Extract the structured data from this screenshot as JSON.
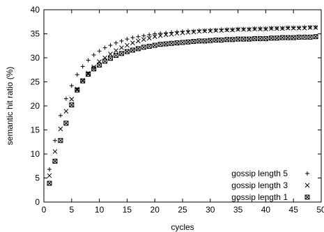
{
  "chart_data": {
    "type": "scatter",
    "xlabel": "cycles",
    "ylabel": "semantic hit ratio (%)",
    "xlim": [
      0,
      50
    ],
    "ylim": [
      0,
      40
    ],
    "xticks": [
      "0",
      "5",
      "10",
      "15",
      "20",
      "25",
      "30",
      "35",
      "40",
      "45",
      "50"
    ],
    "yticks": [
      "0",
      "5",
      "10",
      "15",
      "20",
      "25",
      "30",
      "35",
      "40"
    ],
    "grid": false,
    "legend_position": "bottom-right",
    "series": [
      {
        "name": "gossip length 5",
        "marker": "plus",
        "x": [
          1,
          2,
          3,
          4,
          5,
          6,
          7,
          8,
          9,
          10,
          11,
          12,
          13,
          14,
          15,
          16,
          17,
          18,
          19,
          20,
          21,
          22,
          23,
          24,
          25,
          26,
          27,
          28,
          29,
          30,
          31,
          32,
          33,
          34,
          35,
          36,
          37,
          38,
          39,
          40,
          41,
          42,
          43,
          44,
          45,
          46,
          47,
          48,
          49
        ],
        "y": [
          6.8,
          12.8,
          18.0,
          21.5,
          24.2,
          26.5,
          28.2,
          29.5,
          30.6,
          31.4,
          32.1,
          32.6,
          33.1,
          33.5,
          33.9,
          34.2,
          34.4,
          34.6,
          34.8,
          35.0,
          35.1,
          35.2,
          35.3,
          35.4,
          35.5,
          35.6,
          35.6,
          35.7,
          35.7,
          35.8,
          35.8,
          35.9,
          35.9,
          35.9,
          36.0,
          36.0,
          36.0,
          36.1,
          36.1,
          36.1,
          36.2,
          36.2,
          36.2,
          36.3,
          36.3,
          36.3,
          36.4,
          36.4,
          36.4
        ]
      },
      {
        "name": "gossip length 3",
        "marker": "cross",
        "x": [
          1,
          2,
          3,
          4,
          5,
          6,
          7,
          8,
          9,
          10,
          11,
          12,
          13,
          14,
          15,
          16,
          17,
          18,
          19,
          20,
          21,
          22,
          23,
          24,
          25,
          26,
          27,
          28,
          29,
          30,
          31,
          32,
          33,
          34,
          35,
          36,
          37,
          38,
          39,
          40,
          41,
          42,
          43,
          44,
          45,
          46,
          47,
          48,
          49
        ],
        "y": [
          5.5,
          10.5,
          15.2,
          18.9,
          21.4,
          23.5,
          25.3,
          26.8,
          28.1,
          29.2,
          30.0,
          30.8,
          31.5,
          32.1,
          32.6,
          33.1,
          33.5,
          33.8,
          34.1,
          34.4,
          34.6,
          34.8,
          34.9,
          35.1,
          35.2,
          35.3,
          35.4,
          35.5,
          35.6,
          35.6,
          35.7,
          35.7,
          35.8,
          35.8,
          35.9,
          35.9,
          35.9,
          36.0,
          36.0,
          36.0,
          36.1,
          36.1,
          36.1,
          36.2,
          36.2,
          36.2,
          36.2,
          36.3,
          36.3
        ]
      },
      {
        "name": "gossip length 1",
        "marker": "box-cross",
        "x": [
          1,
          2,
          3,
          4,
          5,
          6,
          7,
          8,
          9,
          10,
          11,
          12,
          13,
          14,
          15,
          16,
          17,
          18,
          19,
          20,
          21,
          22,
          23,
          24,
          25,
          26,
          27,
          28,
          29,
          30,
          31,
          32,
          33,
          34,
          35,
          36,
          37,
          38,
          39,
          40,
          41,
          42,
          43,
          44,
          45,
          46,
          47,
          48,
          49
        ],
        "y": [
          3.9,
          8.5,
          12.8,
          16.4,
          20.2,
          23.3,
          25.2,
          26.6,
          27.7,
          28.5,
          29.3,
          29.9,
          30.5,
          30.9,
          31.3,
          31.6,
          31.9,
          32.2,
          32.4,
          32.6,
          32.8,
          32.9,
          33.0,
          33.1,
          33.2,
          33.3,
          33.4,
          33.5,
          33.5,
          33.6,
          33.7,
          33.7,
          33.8,
          33.8,
          33.9,
          33.9,
          33.9,
          34.0,
          34.0,
          34.0,
          34.1,
          34.1,
          34.2,
          34.2,
          34.2,
          34.3,
          34.3,
          34.3,
          34.4
        ]
      }
    ]
  }
}
